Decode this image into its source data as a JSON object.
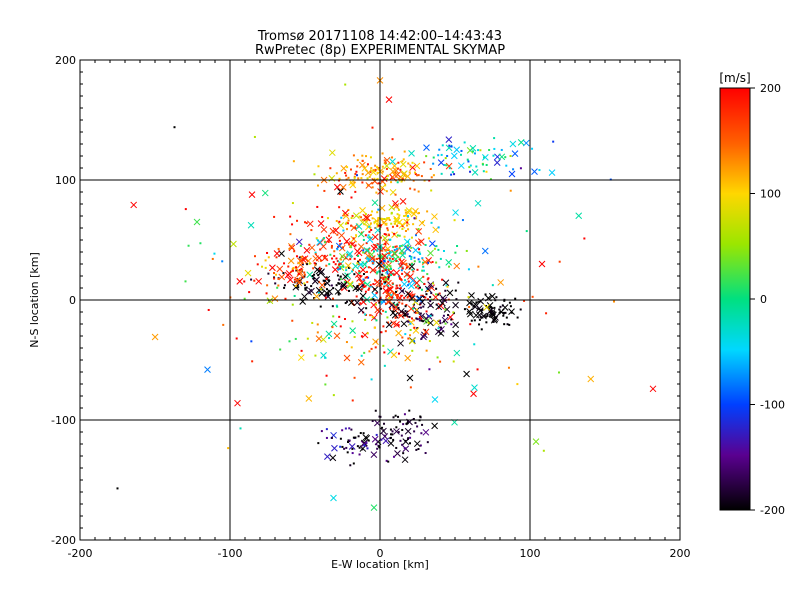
{
  "title": {
    "line1": "Tromsø 20171108 14:42:00–14:43:43",
    "line2": "RwPretec (8p) EXPERIMENTAL SKYMAP"
  },
  "colorbar": {
    "unit_label": "[m/s]",
    "ticks": [
      200,
      100,
      0,
      -100,
      -200
    ],
    "range": [
      -200,
      200
    ]
  },
  "chart_data": {
    "type": "scatter",
    "title": "Tromsø 20171108 14:42:00–14:43:43",
    "subtitle": "RwPretec (8p) EXPERIMENTAL SKYMAP",
    "xlabel": "E-W location [km]",
    "ylabel": "N-S location [km]",
    "xlim": [
      -200,
      200
    ],
    "ylim": [
      -200,
      200
    ],
    "xticks": [
      -200,
      -100,
      0,
      100,
      200
    ],
    "yticks": [
      -200,
      -100,
      0,
      100,
      200
    ],
    "grid": "lines at x=-100,0,100 and y=-100,0,100",
    "color_scale": {
      "label": "[m/s]",
      "min": -200,
      "max": 200
    },
    "marker_legend": "small dots and x markers, colored by velocity",
    "clusters": [
      {
        "cx": 0,
        "cy": 105,
        "sx": 18,
        "sy": 8,
        "n": 140,
        "v": 130,
        "sv": 35
      },
      {
        "cx": 5,
        "cy": 68,
        "sx": 15,
        "sy": 6,
        "n": 90,
        "v": 100,
        "sv": 15
      },
      {
        "cx": -15,
        "cy": 45,
        "sx": 20,
        "sy": 15,
        "n": 150,
        "v": 180,
        "sv": 30
      },
      {
        "cx": 5,
        "cy": 30,
        "sx": 20,
        "sy": 15,
        "n": 180,
        "v": -20,
        "sv": 40
      },
      {
        "cx": 10,
        "cy": 5,
        "sx": 15,
        "sy": 15,
        "n": 160,
        "v": 190,
        "sv": 15
      },
      {
        "cx": -35,
        "cy": 15,
        "sx": 18,
        "sy": 10,
        "n": 110,
        "v": -200,
        "sv": 10
      },
      {
        "cx": -60,
        "cy": 25,
        "sx": 15,
        "sy": 12,
        "n": 80,
        "v": 170,
        "sv": 50
      },
      {
        "cx": 75,
        "cy": -10,
        "sx": 10,
        "sy": 6,
        "n": 80,
        "v": -200,
        "sv": 5
      },
      {
        "cx": 30,
        "cy": -10,
        "sx": 15,
        "sy": 12,
        "n": 90,
        "v": -190,
        "sv": 15
      },
      {
        "cx": 15,
        "cy": -110,
        "sx": 10,
        "sy": 10,
        "n": 70,
        "v": -190,
        "sv": 20
      },
      {
        "cx": -15,
        "cy": -120,
        "sx": 12,
        "sy": 8,
        "n": 60,
        "v": -170,
        "sv": 40
      },
      {
        "cx": 60,
        "cy": 118,
        "sx": 18,
        "sy": 8,
        "n": 70,
        "v": -40,
        "sv": 50
      },
      {
        "cx": -10,
        "cy": -30,
        "sx": 25,
        "sy": 15,
        "n": 50,
        "v": 100,
        "sv": 90
      },
      {
        "cx": 0,
        "cy": 20,
        "sx": 60,
        "sy": 55,
        "n": 200,
        "v": 60,
        "sv": 130
      }
    ],
    "isolated_points": [
      {
        "x": -137,
        "y": 144,
        "v": -200,
        "m": "dot"
      },
      {
        "x": -175,
        "y": -157,
        "v": -200,
        "m": "dot"
      },
      {
        "x": -122,
        "y": 65,
        "v": 20,
        "m": "x"
      },
      {
        "x": -115,
        "y": -58,
        "v": -80,
        "m": "x"
      },
      {
        "x": 182,
        "y": -74,
        "v": 200,
        "m": "x"
      },
      {
        "x": 104,
        "y": -118,
        "v": 40,
        "m": "x"
      },
      {
        "x": 103,
        "y": 107,
        "v": -90,
        "m": "x"
      },
      {
        "x": -4,
        "y": -173,
        "v": 10,
        "m": "x"
      },
      {
        "x": -31,
        "y": -165,
        "v": -40,
        "m": "x"
      },
      {
        "x": -95,
        "y": -86,
        "v": 200,
        "m": "x"
      },
      {
        "x": 63,
        "y": -73,
        "v": -30,
        "m": "x"
      },
      {
        "x": 108,
        "y": 30,
        "v": 200,
        "m": "x"
      },
      {
        "x": 0,
        "y": 183,
        "v": 130,
        "m": "x"
      },
      {
        "x": 6,
        "y": 167,
        "v": 200,
        "m": "x"
      },
      {
        "x": 20,
        "y": -65,
        "v": -200,
        "m": "x"
      },
      {
        "x": -93,
        "y": -107,
        "v": -20,
        "m": "dot"
      },
      {
        "x": 90,
        "y": 122,
        "v": -90,
        "m": "x"
      },
      {
        "x": 88,
        "y": 105,
        "v": -100,
        "m": "x"
      }
    ]
  }
}
